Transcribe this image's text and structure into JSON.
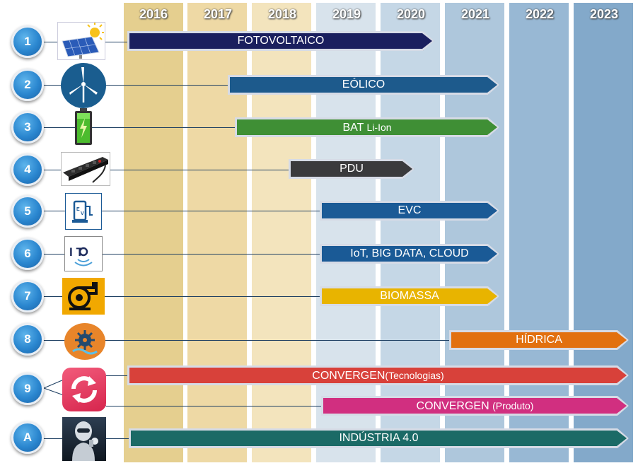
{
  "years": [
    "2016",
    "2017",
    "2018",
    "2019",
    "2020",
    "2021",
    "2022",
    "2023"
  ],
  "rows": [
    {
      "num": "1",
      "label": "FOTOVOLTAICO",
      "label2": "",
      "icon": "solar-panel-icon"
    },
    {
      "num": "2",
      "label": "EÓLICO",
      "label2": "",
      "icon": "wind-turbine-icon"
    },
    {
      "num": "3",
      "label": "BAT",
      "label2": "Li-Ion",
      "icon": "battery-icon"
    },
    {
      "num": "4",
      "label": "PDU",
      "label2": "",
      "icon": "pdu-strip-icon"
    },
    {
      "num": "5",
      "label": "EVC",
      "label2": "",
      "icon": "ev-charger-icon"
    },
    {
      "num": "6",
      "label": "IoT, BIG DATA, CLOUD",
      "label2": "",
      "icon": "iot-icon",
      "icon_text": "I   T"
    },
    {
      "num": "7",
      "label": "BIOMASSA",
      "label2": "",
      "icon": "boiler-icon"
    },
    {
      "num": "8",
      "label": "HÍDRICA",
      "label2": "",
      "icon": "water-turbine-icon"
    },
    {
      "num": "9",
      "label": "CONVERGEN",
      "label2": "(Tecnologias)",
      "icon": "convergence-refresh-icon"
    },
    {
      "num": "",
      "label": "CONVERGEN",
      "label2": "(Produto)",
      "icon": ""
    },
    {
      "num": "A",
      "label": "INDÚSTRIA 4.0",
      "label2": "",
      "icon": "robot-icon"
    }
  ],
  "colors": {
    "fotovoltaico": "#1a1f5e",
    "eolico": "#1d5a8c",
    "bat": "#3f8f35",
    "pdu": "#3a3a3c",
    "evc": "#1b5a96",
    "iot": "#1a5a96",
    "biomassa": "#e8b400",
    "hidrica": "#e2700f",
    "conv_tec": "#d8413a",
    "conv_prod": "#d12f80",
    "industria": "#1b6a66"
  }
}
